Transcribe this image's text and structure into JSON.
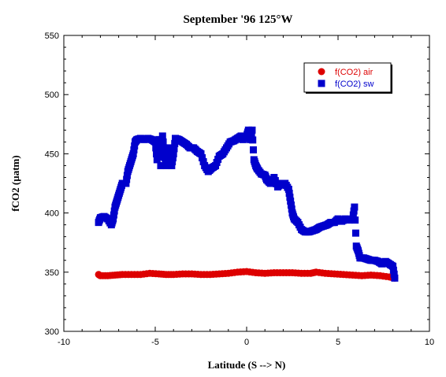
{
  "chart_data": {
    "type": "scatter",
    "title": "September '96 125°W",
    "xlabel": "Latitude (S --> N)",
    "ylabel": "fCO2 (µatm)",
    "xlim": [
      -10,
      10
    ],
    "ylim": [
      300,
      550
    ],
    "xticks": [
      -10,
      -5,
      0,
      5,
      10
    ],
    "yticks": [
      300,
      350,
      400,
      450,
      500,
      550
    ],
    "legend_position": "top-right",
    "series": [
      {
        "name": "f(CO2) air",
        "marker": "circle",
        "color": "#dd0000",
        "points": [
          [
            -8.1,
            348
          ],
          [
            -8.0,
            347
          ],
          [
            -7.6,
            347
          ],
          [
            -7.2,
            347.5
          ],
          [
            -6.8,
            348
          ],
          [
            -6.3,
            348
          ],
          [
            -5.8,
            348
          ],
          [
            -5.3,
            349
          ],
          [
            -4.8,
            348.5
          ],
          [
            -4.4,
            348
          ],
          [
            -4.0,
            348
          ],
          [
            -3.5,
            348.5
          ],
          [
            -3.0,
            348.5
          ],
          [
            -2.5,
            348
          ],
          [
            -2.0,
            348
          ],
          [
            -1.5,
            348.5
          ],
          [
            -1.0,
            349
          ],
          [
            -0.5,
            350
          ],
          [
            0.0,
            350.5
          ],
          [
            0.5,
            349.5
          ],
          [
            1.0,
            349
          ],
          [
            1.5,
            349.5
          ],
          [
            2.0,
            349.5
          ],
          [
            2.5,
            349.5
          ],
          [
            3.0,
            349
          ],
          [
            3.5,
            349
          ],
          [
            3.8,
            350
          ],
          [
            4.3,
            349
          ],
          [
            4.8,
            348.5
          ],
          [
            5.3,
            348
          ],
          [
            5.8,
            347.5
          ],
          [
            6.3,
            347
          ],
          [
            6.8,
            347.5
          ],
          [
            7.3,
            347
          ],
          [
            7.8,
            346
          ],
          [
            8.1,
            345
          ]
        ]
      },
      {
        "name": "f(CO2) sw",
        "marker": "square",
        "color": "#0000cc",
        "points": [
          [
            -8.1,
            392
          ],
          [
            -8.0,
            396
          ],
          [
            -7.8,
            397
          ],
          [
            -7.6,
            395
          ],
          [
            -7.4,
            390
          ],
          [
            -7.3,
            395
          ],
          [
            -7.2,
            405
          ],
          [
            -7.1,
            410
          ],
          [
            -7.0,
            415
          ],
          [
            -6.9,
            420
          ],
          [
            -6.8,
            425
          ],
          [
            -6.6,
            425
          ],
          [
            -6.5,
            435
          ],
          [
            -6.4,
            440
          ],
          [
            -6.3,
            445
          ],
          [
            -6.2,
            450
          ],
          [
            -6.1,
            460
          ],
          [
            -6.0,
            462
          ],
          [
            -5.8,
            463
          ],
          [
            -5.6,
            462
          ],
          [
            -5.4,
            463
          ],
          [
            -5.2,
            462
          ],
          [
            -5.0,
            460
          ],
          [
            -4.9,
            445
          ],
          [
            -4.8,
            462
          ],
          [
            -4.7,
            440
          ],
          [
            -4.6,
            465
          ],
          [
            -4.5,
            450
          ],
          [
            -4.4,
            440
          ],
          [
            -4.3,
            445
          ],
          [
            -4.2,
            455
          ],
          [
            -4.1,
            440
          ],
          [
            -4.0,
            450
          ],
          [
            -3.9,
            463
          ],
          [
            -3.7,
            462
          ],
          [
            -3.5,
            460
          ],
          [
            -3.3,
            458
          ],
          [
            -3.1,
            455
          ],
          [
            -2.9,
            455
          ],
          [
            -2.7,
            452
          ],
          [
            -2.5,
            450
          ],
          [
            -2.3,
            440
          ],
          [
            -2.1,
            435
          ],
          [
            -1.9,
            438
          ],
          [
            -1.7,
            440
          ],
          [
            -1.5,
            448
          ],
          [
            -1.3,
            450
          ],
          [
            -1.1,
            455
          ],
          [
            -0.9,
            460
          ],
          [
            -0.7,
            461
          ],
          [
            -0.5,
            463
          ],
          [
            -0.3,
            465
          ],
          [
            -0.2,
            462
          ],
          [
            0.0,
            465
          ],
          [
            0.1,
            470
          ],
          [
            0.2,
            462
          ],
          [
            0.3,
            470
          ],
          [
            0.4,
            445
          ],
          [
            0.5,
            440
          ],
          [
            0.6,
            437
          ],
          [
            0.8,
            433
          ],
          [
            1.0,
            432
          ],
          [
            1.1,
            428
          ],
          [
            1.3,
            425
          ],
          [
            1.5,
            430
          ],
          [
            1.7,
            422
          ],
          [
            1.9,
            425
          ],
          [
            2.1,
            425
          ],
          [
            2.3,
            420
          ],
          [
            2.4,
            410
          ],
          [
            2.5,
            400
          ],
          [
            2.6,
            395
          ],
          [
            2.8,
            392
          ],
          [
            3.0,
            386
          ],
          [
            3.2,
            384
          ],
          [
            3.4,
            384
          ],
          [
            3.6,
            385
          ],
          [
            3.8,
            386
          ],
          [
            4.0,
            388
          ],
          [
            4.2,
            389
          ],
          [
            4.4,
            390
          ],
          [
            4.6,
            392
          ],
          [
            4.8,
            392
          ],
          [
            5.0,
            395
          ],
          [
            5.2,
            393
          ],
          [
            5.4,
            395
          ],
          [
            5.6,
            394
          ],
          [
            5.8,
            395
          ],
          [
            5.9,
            405
          ],
          [
            6.0,
            372
          ],
          [
            6.1,
            368
          ],
          [
            6.2,
            362
          ],
          [
            6.4,
            362
          ],
          [
            6.6,
            361
          ],
          [
            6.8,
            360
          ],
          [
            7.0,
            360
          ],
          [
            7.2,
            359
          ],
          [
            7.4,
            357
          ],
          [
            7.6,
            359
          ],
          [
            7.8,
            357
          ],
          [
            8.0,
            355
          ],
          [
            8.1,
            345
          ]
        ]
      }
    ]
  }
}
